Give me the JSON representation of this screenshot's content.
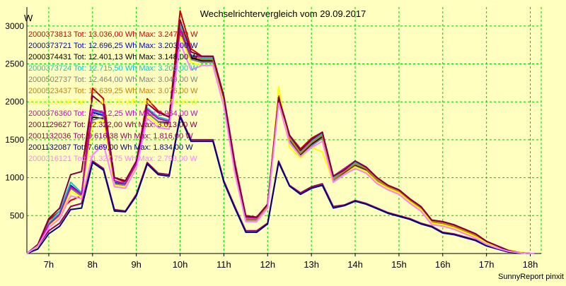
{
  "title": "Wechselrichtervergleich vom 29.09.2017",
  "footer": "SunnyReport pinxit",
  "colors": {
    "background": "#ffffc0",
    "plot_background": "#ffffc0",
    "grid": "#00cc00",
    "axis": "#000000"
  },
  "chart_data": {
    "type": "line",
    "title": "Wechselrichtervergleich vom 29.09.2017",
    "ylabel": "W",
    "xlabel": "",
    "xlim": [
      6.5,
      18.25
    ],
    "ylim": [
      0,
      3250
    ],
    "grid": true,
    "legend_position": "top-left",
    "x_ticks": [
      7,
      8,
      9,
      10,
      11,
      12,
      13,
      14,
      15,
      16,
      17,
      18
    ],
    "x_tick_labels": [
      "7h",
      "8h",
      "9h",
      "10h",
      "11h",
      "12h",
      "13h",
      "14h",
      "15h",
      "16h",
      "17h",
      "18h"
    ],
    "y_ticks": [
      500,
      1000,
      1500,
      2000,
      2500,
      3000
    ],
    "y_tick_labels": [
      "500",
      "1000",
      "1500",
      "2000",
      "2500",
      "3000"
    ],
    "x": [
      6.5,
      6.75,
      7.0,
      7.25,
      7.5,
      7.75,
      8.0,
      8.25,
      8.5,
      8.75,
      9.0,
      9.25,
      9.5,
      9.75,
      10.0,
      10.25,
      10.5,
      10.75,
      11.0,
      11.25,
      11.5,
      11.75,
      12.0,
      12.25,
      12.5,
      12.75,
      13.0,
      13.25,
      13.5,
      13.75,
      14.0,
      14.25,
      14.5,
      14.75,
      15.0,
      15.25,
      15.5,
      15.75,
      16.0,
      16.25,
      16.5,
      16.75,
      17.0,
      17.25,
      17.5,
      17.75,
      18.0,
      18.1
    ],
    "series": [
      {
        "name": "2000373813 Tot: 13.036,00 Wh Max: 3.247,00 W",
        "color": "#cc0000",
        "values": [
          0,
          100,
          440,
          560,
          700,
          760,
          2180,
          2040,
          1000,
          940,
          1180,
          2040,
          1880,
          1800,
          3200,
          2700,
          2600,
          2600,
          2080,
          1200,
          500,
          480,
          640,
          2080,
          1560,
          1380,
          1520,
          1600,
          1020,
          1100,
          1220,
          1140,
          1000,
          900,
          840,
          720,
          620,
          440,
          420,
          380,
          320,
          260,
          160,
          100,
          40,
          10,
          0,
          0
        ]
      },
      {
        "name": "2000373721 Tot: 12.696,25 Wh Max: 3.203,00 W",
        "color": "#0000cc",
        "values": [
          0,
          100,
          380,
          520,
          900,
          780,
          1860,
          1820,
          940,
          920,
          1200,
          1900,
          1780,
          1740,
          3000,
          2600,
          2560,
          2560,
          2040,
          1140,
          460,
          460,
          640,
          2040,
          1520,
          1320,
          1460,
          1560,
          980,
          1080,
          1180,
          1120,
          980,
          880,
          820,
          700,
          600,
          420,
          400,
          360,
          300,
          240,
          150,
          90,
          30,
          10,
          0,
          0
        ]
      },
      {
        "name": "2000374431 Tot: 12.401,13 Wh Max: 3.148,00 W",
        "color": "#000000",
        "values": [
          0,
          100,
          360,
          500,
          860,
          760,
          1800,
          1780,
          920,
          900,
          1180,
          1860,
          1740,
          1720,
          2960,
          2580,
          2540,
          2540,
          2020,
          1120,
          450,
          450,
          630,
          2020,
          1500,
          1300,
          1440,
          1540,
          960,
          1060,
          1160,
          1100,
          960,
          870,
          810,
          690,
          590,
          410,
          390,
          350,
          290,
          230,
          140,
          80,
          30,
          10,
          0,
          0
        ]
      },
      {
        "name": "2000373724 Tot: 12.715,50 Wh Max: 3.203,00 W",
        "color": "#00cccc",
        "values": [
          0,
          60,
          400,
          560,
          940,
          800,
          1880,
          1840,
          950,
          930,
          1200,
          1920,
          1800,
          1760,
          3020,
          2620,
          2580,
          2580,
          2060,
          1160,
          470,
          460,
          640,
          2060,
          1540,
          1340,
          1480,
          1580,
          1000,
          1090,
          1200,
          1130,
          990,
          890,
          830,
          710,
          610,
          430,
          410,
          370,
          310,
          250,
          155,
          95,
          35,
          10,
          0,
          0
        ]
      },
      {
        "name": "2000502737 Tot: 12.464,00 Wh Max: 3.049,00 W",
        "color": "#808080",
        "values": [
          0,
          100,
          360,
          500,
          860,
          760,
          1760,
          1800,
          920,
          900,
          1160,
          1860,
          1740,
          1700,
          2900,
          2560,
          2520,
          2520,
          2000,
          1100,
          440,
          440,
          620,
          2000,
          1480,
          1280,
          1420,
          1520,
          960,
          1050,
          1150,
          1090,
          960,
          860,
          800,
          680,
          580,
          400,
          380,
          340,
          280,
          220,
          130,
          80,
          30,
          10,
          0,
          0
        ]
      },
      {
        "name": "2000523437 Tot: 12.639,25 Wh Max: 3.076,00 W",
        "color": "#cc8000",
        "values": [
          0,
          100,
          380,
          520,
          880,
          780,
          1900,
          1860,
          960,
          920,
          1180,
          1900,
          1780,
          1740,
          2980,
          2600,
          2560,
          2560,
          2040,
          1140,
          460,
          460,
          630,
          2040,
          1520,
          1320,
          1460,
          1560,
          980,
          1080,
          1180,
          1120,
          980,
          880,
          820,
          700,
          600,
          420,
          400,
          360,
          300,
          240,
          150,
          90,
          30,
          10,
          0,
          0
        ]
      },
      {
        "name": "2000623439 Tot: 12.462,75 Wh Max: 3.174,00 W",
        "color": "#ffff00",
        "values": [
          0,
          80,
          360,
          480,
          820,
          740,
          1700,
          1760,
          900,
          880,
          1140,
          1820,
          1700,
          1680,
          2880,
          2520,
          2480,
          2480,
          1980,
          1080,
          420,
          420,
          600,
          2200,
          1400,
          1260,
          1400,
          1340,
          940,
          1040,
          1140,
          1080,
          940,
          860,
          800,
          680,
          580,
          400,
          380,
          340,
          280,
          220,
          140,
          80,
          50,
          20,
          0,
          0
        ]
      },
      {
        "name": "2000376360 Tot: 12.512,25 Wh Max: 2.964,00 W",
        "color": "#cc00cc",
        "values": [
          0,
          100,
          380,
          520,
          880,
          780,
          1900,
          1860,
          960,
          920,
          1180,
          1900,
          1780,
          1740,
          2960,
          2600,
          2600,
          2600,
          2060,
          1160,
          480,
          470,
          650,
          2060,
          1560,
          1360,
          1500,
          1600,
          1020,
          1120,
          1220,
          1140,
          1000,
          900,
          840,
          720,
          620,
          440,
          420,
          380,
          320,
          260,
          160,
          100,
          40,
          10,
          0,
          0
        ]
      },
      {
        "name": "2001129627 Tot: 12.322,00 Wh Max: 3.013,00 W",
        "color": "#800040",
        "values": [
          0,
          120,
          460,
          600,
          1040,
          1080,
          2080,
          1960,
          1000,
          960,
          1220,
          1980,
          1860,
          1800,
          3080,
          2660,
          2600,
          2600,
          2060,
          1160,
          490,
          480,
          650,
          2060,
          1560,
          1360,
          1500,
          1600,
          1020,
          1100,
          1220,
          1140,
          1000,
          900,
          840,
          720,
          620,
          440,
          420,
          380,
          320,
          260,
          160,
          100,
          40,
          10,
          0,
          0
        ]
      },
      {
        "name": "2001132036 Tot: 9.616,38 Wh Max: 1.816,00 W",
        "color": "#990066",
        "values": [
          0,
          100,
          300,
          400,
          620,
          660,
          1220,
          1120,
          580,
          560,
          780,
          1200,
          1060,
          1040,
          1820,
          1500,
          1500,
          1500,
          960,
          620,
          300,
          300,
          400,
          1220,
          900,
          800,
          880,
          920,
          620,
          640,
          700,
          660,
          600,
          540,
          500,
          460,
          400,
          360,
          280,
          260,
          220,
          180,
          110,
          70,
          30,
          10,
          0,
          0
        ]
      },
      {
        "name": "2001132087 Tot: 7.669,00 Wh Max: 1.834,00 W",
        "color": "#000080",
        "values": [
          0,
          60,
          260,
          360,
          580,
          600,
          1200,
          1100,
          560,
          550,
          760,
          1180,
          1040,
          1020,
          1800,
          1480,
          1480,
          1480,
          940,
          600,
          280,
          280,
          390,
          1200,
          890,
          780,
          860,
          900,
          600,
          630,
          690,
          650,
          590,
          530,
          490,
          450,
          390,
          350,
          270,
          250,
          210,
          170,
          100,
          60,
          20,
          10,
          0,
          0
        ]
      },
      {
        "name": "2000316121 Tot: 11.327,75 Wh Max: 2.793,00 W",
        "color": "#ff80ff",
        "values": [
          0,
          100,
          340,
          460,
          760,
          720,
          1300,
          1440,
          880,
          860,
          1120,
          1780,
          1660,
          1640,
          2780,
          2420,
          2480,
          2480,
          1940,
          1060,
          420,
          420,
          600,
          1980,
          1460,
          1280,
          1400,
          1480,
          940,
          1040,
          1120,
          1060,
          920,
          840,
          780,
          660,
          560,
          380,
          360,
          320,
          260,
          200,
          120,
          70,
          30,
          10,
          0,
          0
        ]
      }
    ]
  }
}
